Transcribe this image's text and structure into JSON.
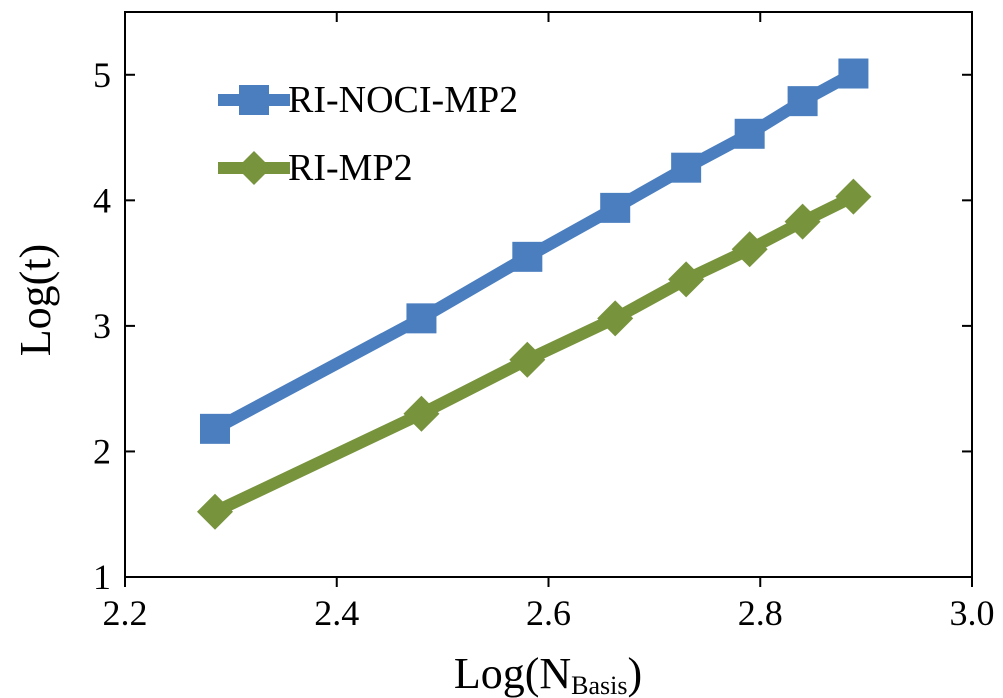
{
  "chart_data": {
    "type": "line",
    "xlabel": "Log(N",
    "xlabel_sub": "Basis",
    "xlabel_close": ")",
    "ylabel": "Log(t)",
    "xlim": [
      2.2,
      3.0
    ],
    "ylim": [
      1,
      5.5
    ],
    "x_ticks": [
      "2.2",
      "2.4",
      "2.6",
      "2.8",
      "3.0"
    ],
    "y_ticks": [
      "1",
      "2",
      "3",
      "4",
      "5"
    ],
    "grid": false,
    "legend_position": "top-left",
    "series": [
      {
        "name": "RI-NOCI-MP2",
        "color": "#4a7ebf",
        "marker": "square",
        "x": [
          2.285,
          2.48,
          2.58,
          2.663,
          2.73,
          2.79,
          2.84,
          2.888
        ],
        "y": [
          2.18,
          3.06,
          3.55,
          3.94,
          4.26,
          4.53,
          4.79,
          5.01
        ]
      },
      {
        "name": "RI-MP2",
        "color": "#77933c",
        "marker": "diamond",
        "x": [
          2.285,
          2.48,
          2.58,
          2.663,
          2.73,
          2.79,
          2.84,
          2.888
        ],
        "y": [
          1.52,
          2.3,
          2.73,
          3.06,
          3.37,
          3.61,
          3.83,
          4.03
        ]
      }
    ]
  }
}
